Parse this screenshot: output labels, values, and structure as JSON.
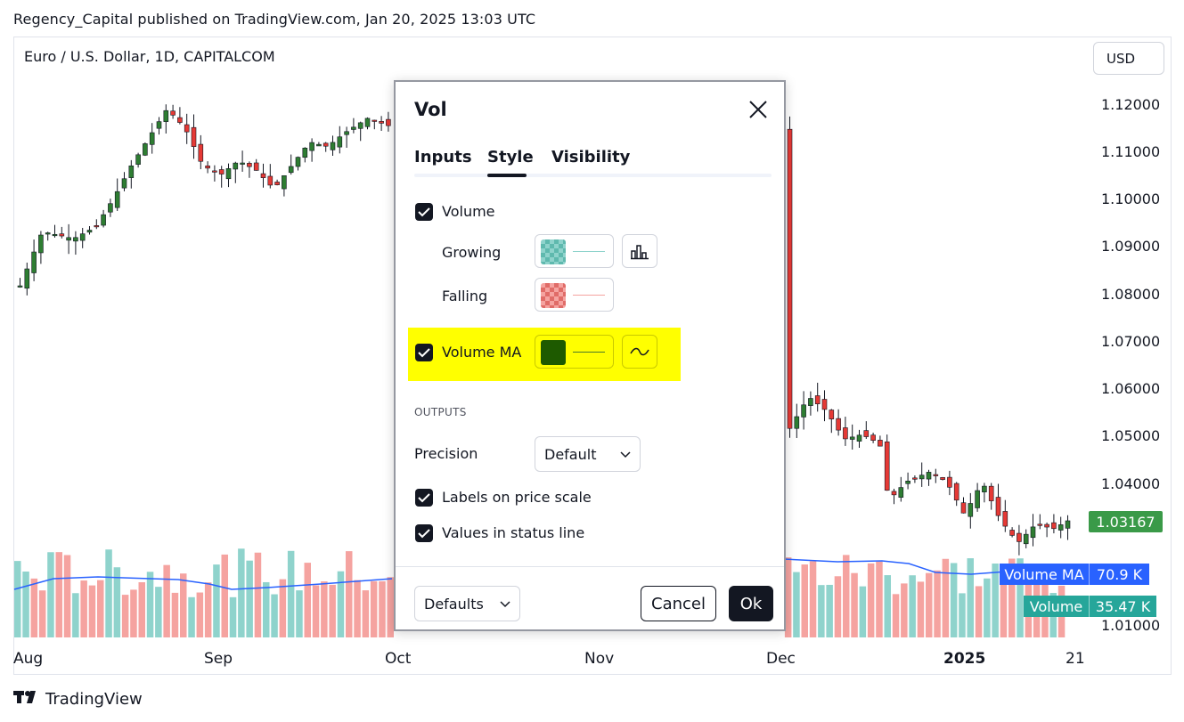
{
  "header": {
    "published_line": "Regency_Capital published on TradingView.com, Jan 20, 2025 13:03 UTC",
    "symbol_title": "Euro / U.S. Dollar, 1D, CAPITALCOM",
    "currency": "USD"
  },
  "price_axis": {
    "ticks": [
      "1.12000",
      "1.11000",
      "1.10000",
      "1.09000",
      "1.08000",
      "1.07000",
      "1.06000",
      "1.05000",
      "1.04000",
      "1.01000"
    ],
    "last_price": "1.03167"
  },
  "time_axis": {
    "ticks": [
      "Aug",
      "Sep",
      "Oct",
      "Nov",
      "Dec",
      "2025",
      "21"
    ]
  },
  "indicator_labels": {
    "ma_name": "Volume MA",
    "ma_value": "70.9 K",
    "volume_name": "Volume",
    "volume_value": "35.47 K"
  },
  "colors": {
    "up": "#26a69a",
    "up_candle": "#2e7d32",
    "down": "#e53935",
    "volume_up": "#8fd3cc",
    "volume_down": "#f5a3a0",
    "ma_line": "#2962ff",
    "volume_ma_color": "#1e5a00",
    "highlight": "#ffff00"
  },
  "dialog": {
    "title": "Vol",
    "tabs": [
      "Inputs",
      "Style",
      "Visibility"
    ],
    "active_tab": "Style",
    "volume_label": "Volume",
    "growing_label": "Growing",
    "falling_label": "Falling",
    "volume_ma_label": "Volume MA",
    "outputs_heading": "OUTPUTS",
    "precision_label": "Precision",
    "precision_value": "Default",
    "labels_on_price_scale": "Labels on price scale",
    "values_in_status_line": "Values in status line",
    "defaults_button": "Defaults",
    "cancel_button": "Cancel",
    "ok_button": "Ok"
  },
  "footer": {
    "brand": "TradingView"
  }
}
